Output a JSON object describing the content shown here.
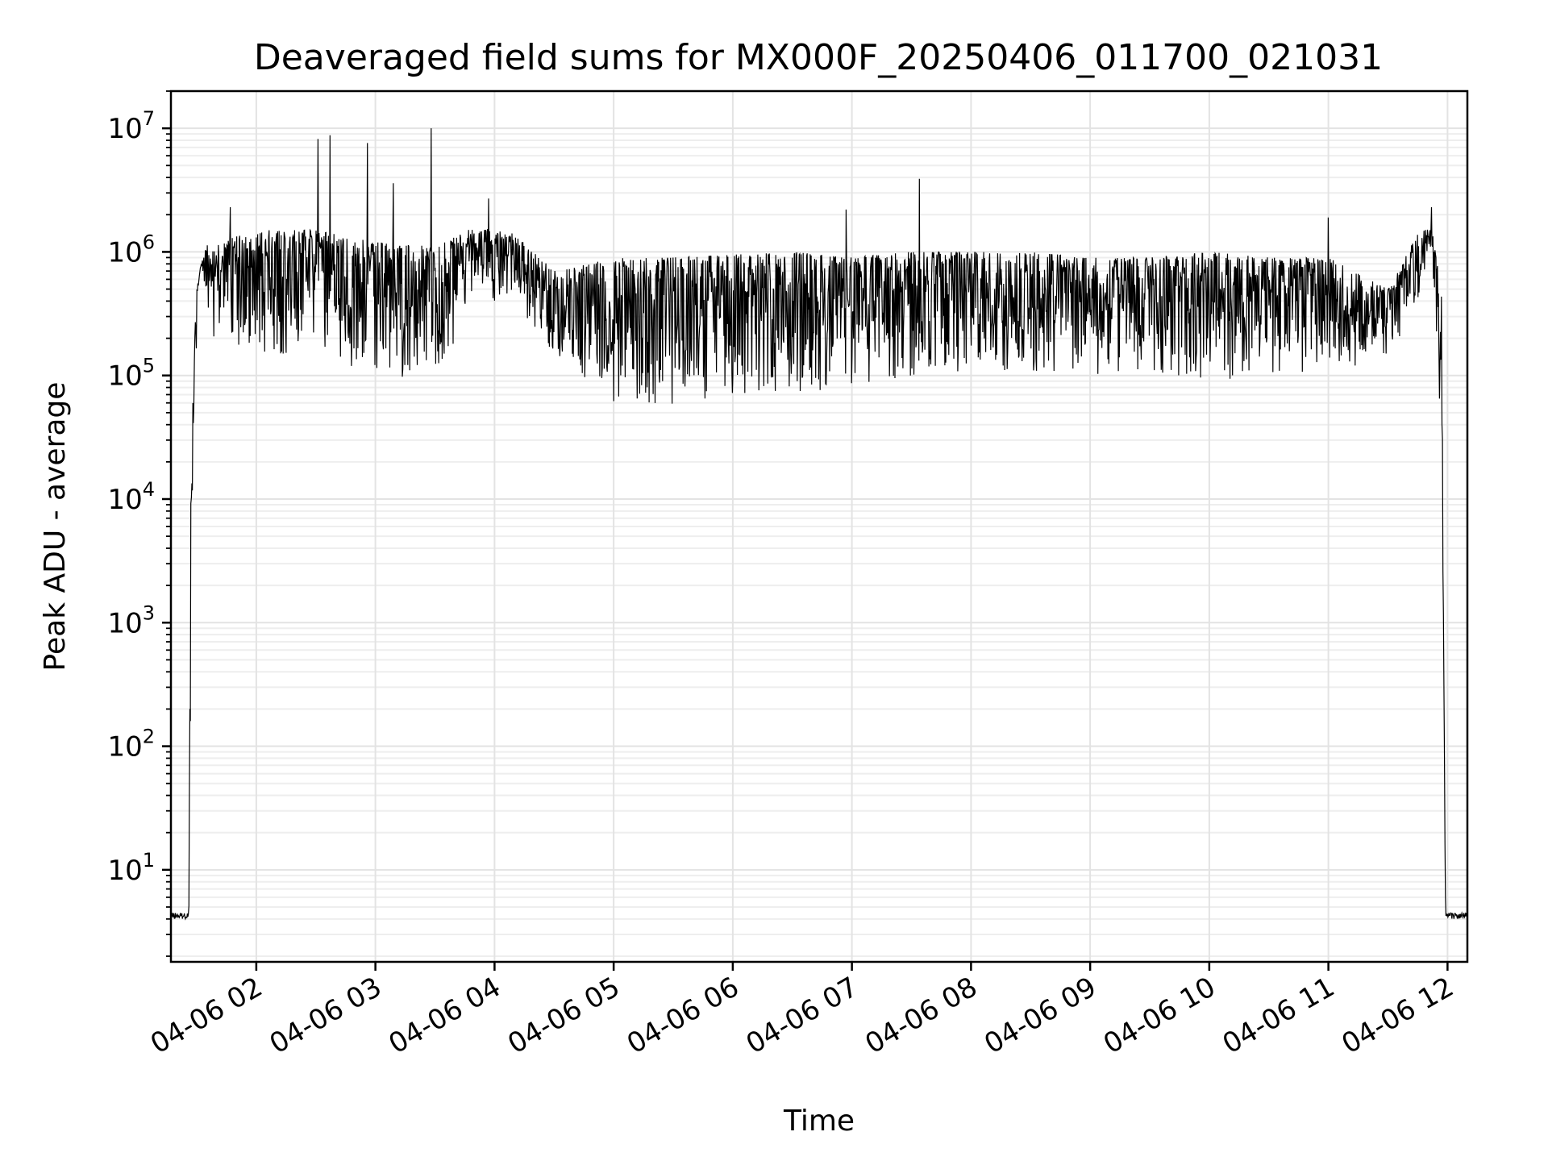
{
  "chart_data": {
    "type": "line",
    "title": "Deaveraged field sums for MX000F_20250406_011700_021031",
    "xlabel": "Time",
    "ylabel": "Peak ADU - average",
    "yscale": "log",
    "ylim": [
      1.8,
      20000000
    ],
    "xlim": [
      "2025-04-06 01:17",
      "2025-04-06 12:10"
    ],
    "grid": true,
    "x_ticks": [
      {
        "t": "2025-04-06 02:00",
        "label": "04-06 02"
      },
      {
        "t": "2025-04-06 03:00",
        "label": "04-06 03"
      },
      {
        "t": "2025-04-06 04:00",
        "label": "04-06 04"
      },
      {
        "t": "2025-04-06 05:00",
        "label": "04-06 05"
      },
      {
        "t": "2025-04-06 06:00",
        "label": "04-06 06"
      },
      {
        "t": "2025-04-06 07:00",
        "label": "04-06 07"
      },
      {
        "t": "2025-04-06 08:00",
        "label": "04-06 08"
      },
      {
        "t": "2025-04-06 09:00",
        "label": "04-06 09"
      },
      {
        "t": "2025-04-06 10:00",
        "label": "04-06 10"
      },
      {
        "t": "2025-04-06 11:00",
        "label": "04-06 11"
      },
      {
        "t": "2025-04-06 12:00",
        "label": "04-06 12"
      }
    ],
    "y_ticks": [
      {
        "value": 10,
        "base": "10",
        "exp": "1"
      },
      {
        "value": 100,
        "base": "10",
        "exp": "2"
      },
      {
        "value": 1000,
        "base": "10",
        "exp": "3"
      },
      {
        "value": 10000,
        "base": "10",
        "exp": "4"
      },
      {
        "value": 100000,
        "base": "10",
        "exp": "5"
      },
      {
        "value": 1000000,
        "base": "10",
        "exp": "6"
      },
      {
        "value": 10000000,
        "base": "10",
        "exp": "7"
      }
    ],
    "series": [
      {
        "color": "#000000",
        "envelope": [
          {
            "t": "2025-04-06 01:17",
            "low": 4,
            "high": 4.5
          },
          {
            "t": "2025-04-06 01:26",
            "low": 4,
            "high": 4.5
          },
          {
            "t": "2025-04-06 01:27",
            "low": 400,
            "high": 10000
          },
          {
            "t": "2025-04-06 01:29",
            "low": 100000,
            "high": 400000
          },
          {
            "t": "2025-04-06 01:33",
            "low": 600000,
            "high": 1100000
          },
          {
            "t": "2025-04-06 01:40",
            "low": 150000,
            "high": 1200000
          },
          {
            "t": "2025-04-06 02:00",
            "low": 150000,
            "high": 1500000
          },
          {
            "t": "2025-04-06 02:30",
            "low": 150000,
            "high": 1500000
          },
          {
            "t": "2025-04-06 03:00",
            "low": 100000,
            "high": 1200000
          },
          {
            "t": "2025-04-06 03:30",
            "low": 90000,
            "high": 1100000
          },
          {
            "t": "2025-04-06 03:50",
            "low": 400000,
            "high": 1600000
          },
          {
            "t": "2025-04-06 04:10",
            "low": 400000,
            "high": 1400000
          },
          {
            "t": "2025-04-06 04:30",
            "low": 150000,
            "high": 700000
          },
          {
            "t": "2025-04-06 05:00",
            "low": 60000,
            "high": 900000
          },
          {
            "t": "2025-04-06 05:30",
            "low": 55000,
            "high": 900000
          },
          {
            "t": "2025-04-06 06:00",
            "low": 60000,
            "high": 950000
          },
          {
            "t": "2025-04-06 06:30",
            "low": 70000,
            "high": 1000000
          },
          {
            "t": "2025-04-06 07:00",
            "low": 80000,
            "high": 900000
          },
          {
            "t": "2025-04-06 07:30",
            "low": 100000,
            "high": 1000000
          },
          {
            "t": "2025-04-06 08:00",
            "low": 110000,
            "high": 1000000
          },
          {
            "t": "2025-04-06 08:30",
            "low": 110000,
            "high": 1000000
          },
          {
            "t": "2025-04-06 09:00",
            "low": 100000,
            "high": 900000
          },
          {
            "t": "2025-04-06 09:30",
            "low": 110000,
            "high": 900000
          },
          {
            "t": "2025-04-06 10:00",
            "low": 90000,
            "high": 1000000
          },
          {
            "t": "2025-04-06 10:30",
            "low": 100000,
            "high": 900000
          },
          {
            "t": "2025-04-06 11:00",
            "low": 110000,
            "high": 900000
          },
          {
            "t": "2025-04-06 11:30",
            "low": 130000,
            "high": 500000
          },
          {
            "t": "2025-04-06 11:45",
            "low": 400000,
            "high": 1400000
          },
          {
            "t": "2025-04-06 11:52",
            "low": 1200000,
            "high": 1600000
          },
          {
            "t": "2025-04-06 11:57",
            "low": 20000,
            "high": 500000
          },
          {
            "t": "2025-04-06 11:59",
            "low": 4,
            "high": 4.5
          },
          {
            "t": "2025-04-06 12:10",
            "low": 4,
            "high": 4.5
          }
        ],
        "spikes": [
          {
            "t": "2025-04-06 02:31",
            "value": 8200000
          },
          {
            "t": "2025-04-06 02:37",
            "value": 8800000
          },
          {
            "t": "2025-04-06 02:56",
            "value": 7600000
          },
          {
            "t": "2025-04-06 03:09",
            "value": 3600000
          },
          {
            "t": "2025-04-06 03:28",
            "value": 10000000
          },
          {
            "t": "2025-04-06 01:47",
            "value": 2300000
          },
          {
            "t": "2025-04-06 03:57",
            "value": 2700000
          },
          {
            "t": "2025-04-06 06:57",
            "value": 2200000
          },
          {
            "t": "2025-04-06 07:34",
            "value": 3900000
          },
          {
            "t": "2025-04-06 11:00",
            "value": 1900000
          },
          {
            "t": "2025-04-06 11:52",
            "value": 2300000
          }
        ]
      }
    ]
  }
}
